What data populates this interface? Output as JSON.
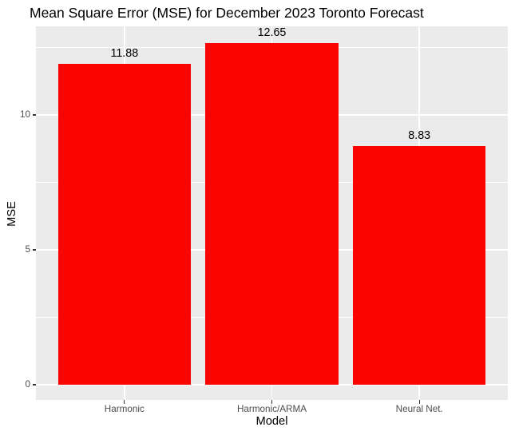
{
  "colors": {
    "bar_fill": "#FA0400",
    "panel_background": "#EBEBEB",
    "gridline": "#FFFFFF",
    "tick_label": "#4D4D4D",
    "tick_mark": "#333333",
    "title_text": "#000000"
  },
  "chart_data": {
    "type": "bar",
    "title": "Mean Square Error (MSE) for December 2023 Toronto Forecast",
    "xlabel": "Model",
    "ylabel": "MSE",
    "categories": [
      "Harmonic",
      "Harmonic/ARMA",
      "Neural Net."
    ],
    "values": [
      11.88,
      12.65,
      8.83
    ],
    "bar_value_labels": [
      "11.88",
      "12.65",
      "8.83"
    ],
    "y_major_ticks": [
      0,
      5,
      10
    ],
    "y_major_tick_labels": [
      "0",
      "5",
      "10"
    ],
    "y_minor_ticks": [
      2.5,
      7.5,
      12.5
    ],
    "ylim": [
      -0.56,
      13.28
    ],
    "bar_width_fraction": 0.9,
    "grid": true,
    "legend_position": "none",
    "bar_color_name": "red",
    "theme": "ggplot-grey"
  }
}
